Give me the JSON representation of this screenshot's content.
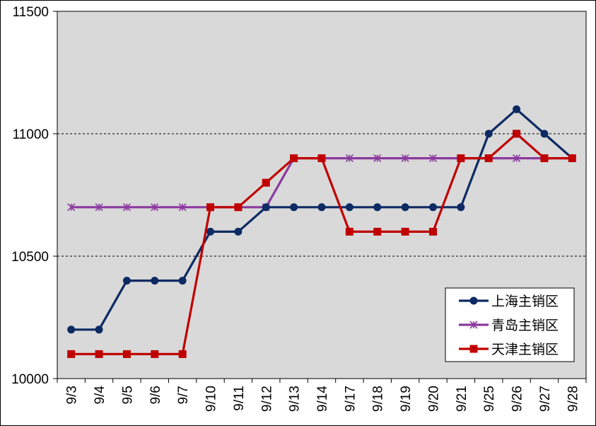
{
  "chart_data": {
    "type": "line",
    "categories": [
      "9/3",
      "9/4",
      "9/5",
      "9/6",
      "9/7",
      "9/10",
      "9/11",
      "9/12",
      "9/13",
      "9/14",
      "9/17",
      "9/18",
      "9/19",
      "9/20",
      "9/21",
      "9/25",
      "9/26",
      "9/27",
      "9/28"
    ],
    "ylim": [
      10000,
      11500
    ],
    "yticks": [
      "10000",
      "10500",
      "11000",
      "11500"
    ],
    "grid": "dashed horizontal lines at 10500 and 11000",
    "legend": "bottom-right",
    "series": [
      {
        "name": "上海主销区",
        "color": "#0d2a63",
        "marker": "circle",
        "values": [
          10200,
          10200,
          10400,
          10400,
          10400,
          10600,
          10600,
          10700,
          10700,
          10700,
          10700,
          10700,
          10700,
          10700,
          10700,
          11000,
          11100,
          11000,
          10900
        ]
      },
      {
        "name": "青岛主销区",
        "color": "#8b3a9e",
        "marker": "asterisk",
        "values": [
          10700,
          10700,
          10700,
          10700,
          10700,
          10700,
          10700,
          10700,
          10900,
          10900,
          10900,
          10900,
          10900,
          10900,
          10900,
          10900,
          10900,
          10900,
          10900
        ]
      },
      {
        "name": "天津主销区",
        "color": "#c00000",
        "marker": "square",
        "values": [
          10100,
          10100,
          10100,
          10100,
          10100,
          10700,
          10700,
          10800,
          10900,
          10900,
          10600,
          10600,
          10600,
          10600,
          10900,
          10900,
          11000,
          10900,
          10900
        ]
      }
    ]
  }
}
